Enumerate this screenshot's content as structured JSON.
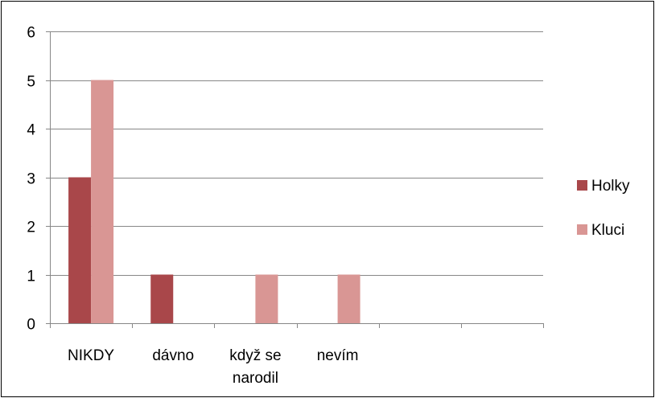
{
  "chart_data": {
    "type": "bar",
    "categories": [
      [
        "NIKDY"
      ],
      [
        "dávno"
      ],
      [
        "když se",
        "narodil"
      ],
      [
        "nevím"
      ],
      [
        ""
      ],
      [
        ""
      ]
    ],
    "series": [
      {
        "name": "Holky",
        "values": [
          3,
          1,
          0,
          0,
          0,
          0
        ],
        "color": "#A9474A"
      },
      {
        "name": "Kluci",
        "values": [
          5,
          0,
          1,
          1,
          0,
          0
        ],
        "color": "#D99694"
      }
    ],
    "yticks": [
      "0",
      "1",
      "2",
      "3",
      "4",
      "5",
      "6"
    ],
    "ylim": [
      0,
      6
    ],
    "grid": true,
    "legend_position": "right",
    "colors": {
      "gridline": "#878787",
      "axis": "#878787",
      "text": "#000000"
    }
  }
}
